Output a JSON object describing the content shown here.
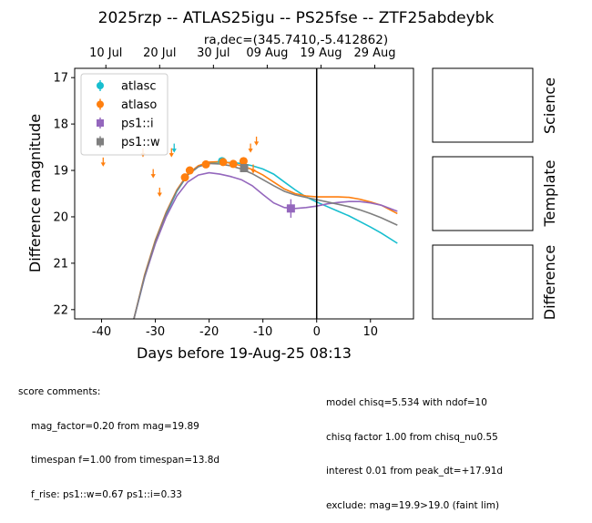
{
  "title": "2025rzp -- ATLAS25igu -- PS25fse -- ZTF25abdeybk",
  "subtitle": "ra,dec=(345.7410,-5.412862)",
  "chart_data": {
    "type": "scatter",
    "xlabel": "Days before 19-Aug-25 08:13",
    "ylabel": "Difference magnitude",
    "xlim": [
      -45,
      18
    ],
    "ylim": [
      22.2,
      16.8
    ],
    "y_inverted": true,
    "x_ticks": [
      -40,
      -30,
      -20,
      -10,
      0,
      10
    ],
    "y_ticks": [
      17,
      18,
      19,
      20,
      21,
      22
    ],
    "top_ticks": [
      {
        "x": -39.2,
        "label": "10 Jul"
      },
      {
        "x": -29.2,
        "label": "20 Jul"
      },
      {
        "x": -19.2,
        "label": "30 Jul"
      },
      {
        "x": -9.2,
        "label": "09 Aug"
      },
      {
        "x": 0.8,
        "label": "19 Aug"
      },
      {
        "x": 10.8,
        "label": "29 Aug"
      }
    ],
    "vline_x": 0,
    "legend_position": "upper-left",
    "series": [
      {
        "name": "atlasc",
        "color": "#17becf",
        "marker": "circle",
        "points": [
          {
            "x": -17.6,
            "y": 18.8,
            "err": 0.06
          }
        ],
        "limits": [
          {
            "x": -26.5,
            "y": 18.5
          }
        ],
        "model": [
          [
            -34,
            22.2
          ],
          [
            -32,
            21.3
          ],
          [
            -30,
            20.55
          ],
          [
            -28,
            19.95
          ],
          [
            -26,
            19.45
          ],
          [
            -24,
            19.1
          ],
          [
            -22,
            18.92
          ],
          [
            -20,
            18.83
          ],
          [
            -18,
            18.82
          ],
          [
            -16,
            18.83
          ],
          [
            -14,
            18.85
          ],
          [
            -12,
            18.9
          ],
          [
            -10,
            18.97
          ],
          [
            -8,
            19.08
          ],
          [
            -6,
            19.25
          ],
          [
            -4,
            19.42
          ],
          [
            -2,
            19.57
          ],
          [
            0,
            19.68
          ],
          [
            2,
            19.78
          ],
          [
            4,
            19.88
          ],
          [
            6,
            19.98
          ],
          [
            8,
            20.1
          ],
          [
            10,
            20.22
          ],
          [
            12,
            20.35
          ],
          [
            15,
            20.57
          ]
        ]
      },
      {
        "name": "atlaso",
        "color": "#ff7f0e",
        "marker": "circle",
        "points": [
          {
            "x": -24.5,
            "y": 19.15,
            "err": 0.05
          },
          {
            "x": -23.6,
            "y": 19.0,
            "err": 0.05
          },
          {
            "x": -20.6,
            "y": 18.87,
            "err": 0.04
          },
          {
            "x": -17.4,
            "y": 18.82,
            "err": 0.04
          },
          {
            "x": -15.5,
            "y": 18.86,
            "err": 0.04
          },
          {
            "x": -13.6,
            "y": 18.8,
            "err": 0.05
          }
        ],
        "limits": [
          {
            "x": -39.7,
            "y": 18.8
          },
          {
            "x": -32.3,
            "y": 18.6
          },
          {
            "x": -30.4,
            "y": 19.05
          },
          {
            "x": -29.2,
            "y": 19.45
          },
          {
            "x": -27.0,
            "y": 18.6
          },
          {
            "x": -12.3,
            "y": 18.5
          },
          {
            "x": -11.2,
            "y": 18.35
          },
          {
            "x": -11.8,
            "y": 18.95
          }
        ],
        "model": [
          [
            -34,
            22.2
          ],
          [
            -32,
            21.25
          ],
          [
            -30,
            20.5
          ],
          [
            -28,
            19.9
          ],
          [
            -26,
            19.42
          ],
          [
            -24,
            19.08
          ],
          [
            -22,
            18.9
          ],
          [
            -20,
            18.82
          ],
          [
            -18,
            18.81
          ],
          [
            -16,
            18.84
          ],
          [
            -14,
            18.9
          ],
          [
            -12,
            18.98
          ],
          [
            -10,
            19.1
          ],
          [
            -8,
            19.25
          ],
          [
            -6,
            19.4
          ],
          [
            -4,
            19.5
          ],
          [
            -2,
            19.55
          ],
          [
            0,
            19.57
          ],
          [
            2,
            19.57
          ],
          [
            4,
            19.57
          ],
          [
            6,
            19.58
          ],
          [
            8,
            19.62
          ],
          [
            10,
            19.68
          ],
          [
            12,
            19.75
          ],
          [
            15,
            19.93
          ]
        ]
      },
      {
        "name": "ps1::i",
        "color": "#9467bd",
        "marker": "square",
        "points": [
          {
            "x": -4.8,
            "y": 19.82,
            "err": 0.2
          }
        ],
        "limits": [],
        "model": [
          [
            -34,
            22.2
          ],
          [
            -32,
            21.3
          ],
          [
            -30,
            20.58
          ],
          [
            -28,
            20.0
          ],
          [
            -26,
            19.55
          ],
          [
            -24,
            19.25
          ],
          [
            -22,
            19.1
          ],
          [
            -20,
            19.05
          ],
          [
            -18,
            19.08
          ],
          [
            -16,
            19.13
          ],
          [
            -14,
            19.2
          ],
          [
            -12,
            19.33
          ],
          [
            -10,
            19.52
          ],
          [
            -8,
            19.7
          ],
          [
            -6,
            19.8
          ],
          [
            -4,
            19.82
          ],
          [
            -2,
            19.8
          ],
          [
            0,
            19.77
          ],
          [
            2,
            19.72
          ],
          [
            4,
            19.69
          ],
          [
            6,
            19.67
          ],
          [
            8,
            19.67
          ],
          [
            10,
            19.7
          ],
          [
            12,
            19.75
          ],
          [
            15,
            19.88
          ]
        ]
      },
      {
        "name": "ps1::w",
        "color": "#7f7f7f",
        "marker": "square",
        "points": [
          {
            "x": -13.5,
            "y": 18.95,
            "err": 0.08
          }
        ],
        "limits": [],
        "model": [
          [
            -34,
            22.2
          ],
          [
            -32,
            21.27
          ],
          [
            -30,
            20.52
          ],
          [
            -28,
            19.92
          ],
          [
            -26,
            19.44
          ],
          [
            -24,
            19.1
          ],
          [
            -22,
            18.92
          ],
          [
            -20,
            18.85
          ],
          [
            -18,
            18.86
          ],
          [
            -16,
            18.9
          ],
          [
            -14,
            18.97
          ],
          [
            -12,
            19.07
          ],
          [
            -10,
            19.2
          ],
          [
            -8,
            19.33
          ],
          [
            -6,
            19.45
          ],
          [
            -4,
            19.53
          ],
          [
            -2,
            19.58
          ],
          [
            0,
            19.63
          ],
          [
            2,
            19.68
          ],
          [
            4,
            19.73
          ],
          [
            6,
            19.78
          ],
          [
            8,
            19.85
          ],
          [
            10,
            19.93
          ],
          [
            12,
            20.02
          ],
          [
            15,
            20.18
          ]
        ]
      }
    ]
  },
  "side_panels": [
    "Science",
    "Template",
    "Difference"
  ],
  "comments_left": {
    "header": "score comments:",
    "lines": [
      "mag_factor=0.20 from mag=19.89",
      "timespan f=1.00 from timespan=13.8d",
      "f_rise: ps1::w=0.67 ps1::i=0.33"
    ]
  },
  "comments_right": {
    "lines": [
      "model chisq=5.534 with ndof=10",
      "chisq factor 1.00 from chisq_nu0.55",
      "interest 0.01 from peak_dt=+17.91d",
      "exclude: mag=19.9>19.0 (faint lim)"
    ]
  }
}
